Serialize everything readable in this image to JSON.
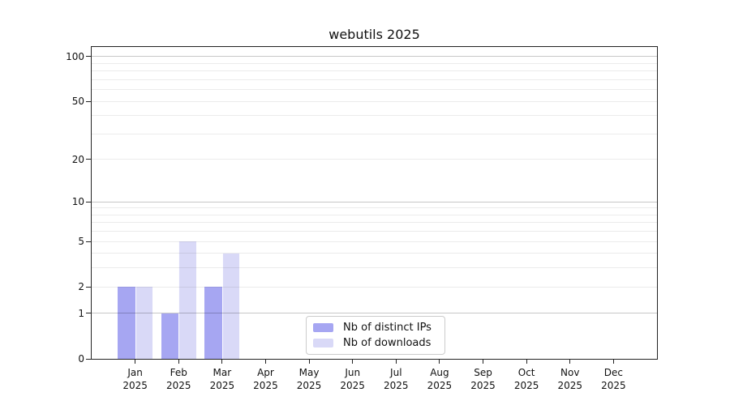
{
  "title": "webutils 2025",
  "chart_data": {
    "type": "bar",
    "title": "webutils 2025",
    "categories": [
      "Jan",
      "Feb",
      "Mar",
      "Apr",
      "May",
      "Jun",
      "Jul",
      "Aug",
      "Sep",
      "Oct",
      "Nov",
      "Dec"
    ],
    "x_tick_second_line": "2025",
    "series": [
      {
        "name": "Nb of distinct IPs",
        "color": "#a6a6f2",
        "values": [
          2,
          1,
          2,
          0,
          0,
          0,
          0,
          0,
          0,
          0,
          0,
          0
        ]
      },
      {
        "name": "Nb of downloads",
        "color": "#d9d9f7",
        "values": [
          2,
          5,
          4,
          0,
          0,
          0,
          0,
          0,
          0,
          0,
          0,
          0
        ]
      }
    ],
    "xlabel": "",
    "ylabel": "",
    "yscale": "log1p",
    "ylim": [
      0,
      116
    ],
    "y_ticks": [
      0,
      1,
      2,
      5,
      10,
      20,
      50,
      100
    ],
    "y_major_grid": [
      1,
      10,
      100
    ],
    "y_minor_grid": [
      2,
      3,
      4,
      5,
      6,
      7,
      8,
      9,
      20,
      30,
      40,
      50,
      60,
      70,
      80,
      90
    ],
    "grid": true,
    "legend_position": "lower center"
  },
  "colors": {
    "bar_primary": "#a6a6f2",
    "bar_secondary": "#d9d9f7",
    "grid_major": "#c7c7c7",
    "grid_minor": "#ebebeb",
    "spine": "#222222",
    "text": "#111111",
    "background": "#ffffff",
    "legend_border": "#cccccc"
  }
}
